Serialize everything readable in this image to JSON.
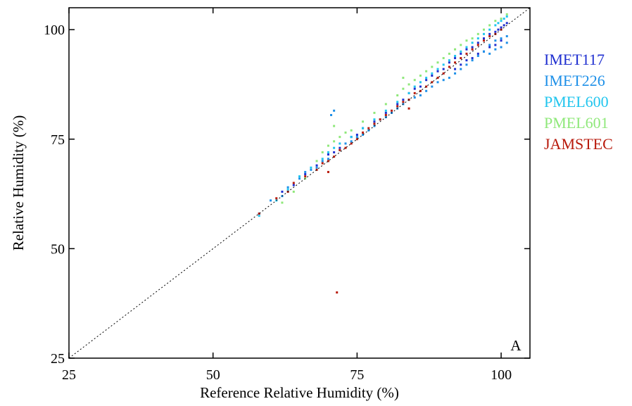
{
  "chart_data": {
    "type": "scatter",
    "title": "",
    "xlabel": "Reference Relative Humidity (%)",
    "ylabel": "Relative Humidity (%)",
    "panel_label": "A",
    "xlim": [
      25,
      105
    ],
    "ylim": [
      25,
      105
    ],
    "x_ticks": [
      25,
      50,
      75,
      100
    ],
    "y_ticks": [
      25,
      50,
      75,
      100
    ],
    "x_tick_labels": [
      "25",
      "50",
      "75",
      "100"
    ],
    "y_tick_labels": [
      "25",
      "50",
      "75",
      "100"
    ],
    "reference_line": "1:1 dotted",
    "grid": false,
    "legend_position": "right",
    "series": [
      {
        "name": "IMET117",
        "color": "#1f2fd0",
        "points": [
          [
            62,
            63
          ],
          [
            64,
            64.5
          ],
          [
            66,
            67
          ],
          [
            68,
            69
          ],
          [
            70,
            71.5
          ],
          [
            71,
            72
          ],
          [
            72,
            73
          ],
          [
            74,
            75.5
          ],
          [
            75,
            76
          ],
          [
            76,
            77.5
          ],
          [
            78,
            79
          ],
          [
            80,
            81
          ],
          [
            82,
            83
          ],
          [
            83,
            84
          ],
          [
            84,
            85.5
          ],
          [
            85,
            86.5
          ],
          [
            86,
            87
          ],
          [
            87,
            88.5
          ],
          [
            88,
            89.5
          ],
          [
            89,
            90.5
          ],
          [
            90,
            91
          ],
          [
            91,
            92.5
          ],
          [
            92,
            93.5
          ],
          [
            93,
            94.5
          ],
          [
            94,
            95.5
          ],
          [
            95,
            96
          ],
          [
            96,
            97
          ],
          [
            97,
            98
          ],
          [
            98,
            99
          ],
          [
            99,
            99.5
          ],
          [
            99.5,
            100
          ],
          [
            100,
            100.5
          ],
          [
            100.5,
            101
          ],
          [
            101,
            101.5
          ],
          [
            100,
            97.5
          ],
          [
            99,
            96.5
          ],
          [
            98,
            96
          ],
          [
            97,
            95
          ],
          [
            96,
            94.5
          ],
          [
            95,
            93.5
          ],
          [
            94,
            93
          ],
          [
            93,
            92
          ],
          [
            92,
            91
          ]
        ]
      },
      {
        "name": "IMET226",
        "color": "#1e90e8",
        "points": [
          [
            58,
            58
          ],
          [
            60,
            61
          ],
          [
            62,
            62
          ],
          [
            63,
            64
          ],
          [
            65,
            66
          ],
          [
            66,
            67.5
          ],
          [
            67,
            68
          ],
          [
            68,
            68.5
          ],
          [
            69,
            70
          ],
          [
            70,
            70.5
          ],
          [
            70.5,
            80.5
          ],
          [
            71,
            81.5
          ],
          [
            72,
            72.5
          ],
          [
            73,
            74
          ],
          [
            74,
            74.5
          ],
          [
            75,
            75.5
          ],
          [
            76,
            76
          ],
          [
            77,
            77
          ],
          [
            78,
            78
          ],
          [
            79,
            79.5
          ],
          [
            80,
            80
          ],
          [
            81,
            81
          ],
          [
            82,
            82
          ],
          [
            83,
            83
          ],
          [
            84,
            84
          ],
          [
            85,
            84.5
          ],
          [
            86,
            85
          ],
          [
            87,
            86
          ],
          [
            88,
            87
          ],
          [
            89,
            88
          ],
          [
            90,
            88.5
          ],
          [
            91,
            89
          ],
          [
            92,
            90
          ],
          [
            93,
            91
          ],
          [
            94,
            92
          ],
          [
            95,
            93
          ],
          [
            96,
            94
          ],
          [
            97,
            95
          ],
          [
            98,
            96.5
          ],
          [
            99,
            97.5
          ],
          [
            100,
            98
          ],
          [
            101,
            98.5
          ],
          [
            101,
            97
          ],
          [
            100,
            96
          ],
          [
            99,
            95.5
          ],
          [
            98,
            94.5
          ]
        ]
      },
      {
        "name": "PMEL600",
        "color": "#20c5ee",
        "points": [
          [
            58,
            57.5
          ],
          [
            61,
            61
          ],
          [
            63,
            63.5
          ],
          [
            65,
            66.5
          ],
          [
            67,
            68.5
          ],
          [
            69,
            70.5
          ],
          [
            70,
            72
          ],
          [
            71,
            73
          ],
          [
            72,
            74
          ],
          [
            74,
            75.5
          ],
          [
            76,
            77.5
          ],
          [
            78,
            79.5
          ],
          [
            80,
            81.5
          ],
          [
            82,
            83.5
          ],
          [
            84,
            85.5
          ],
          [
            85,
            87
          ],
          [
            86,
            88
          ],
          [
            87,
            89
          ],
          [
            88,
            90
          ],
          [
            89,
            91
          ],
          [
            90,
            92
          ],
          [
            91,
            93
          ],
          [
            92,
            94
          ],
          [
            93,
            95
          ],
          [
            94,
            96
          ],
          [
            95,
            97
          ],
          [
            96,
            98
          ],
          [
            97,
            99
          ],
          [
            98,
            100
          ],
          [
            99,
            101
          ],
          [
            99.5,
            101.5
          ],
          [
            100,
            102
          ],
          [
            100.5,
            102.5
          ],
          [
            101,
            103
          ]
        ]
      },
      {
        "name": "PMEL601",
        "color": "#8fe87a",
        "points": [
          [
            62,
            60.5
          ],
          [
            64,
            63
          ],
          [
            66,
            66
          ],
          [
            68,
            70
          ],
          [
            69,
            72
          ],
          [
            70,
            73.5
          ],
          [
            71,
            74.5
          ],
          [
            72,
            75.5
          ],
          [
            73,
            76.5
          ],
          [
            74,
            77
          ],
          [
            76,
            79
          ],
          [
            78,
            81
          ],
          [
            80,
            83
          ],
          [
            82,
            85
          ],
          [
            83,
            86.5
          ],
          [
            84,
            87.5
          ],
          [
            85,
            88.5
          ],
          [
            86,
            89.5
          ],
          [
            87,
            90.5
          ],
          [
            88,
            91.5
          ],
          [
            89,
            92.5
          ],
          [
            90,
            93.5
          ],
          [
            91,
            94.5
          ],
          [
            92,
            95.5
          ],
          [
            93,
            96.5
          ],
          [
            94,
            97.5
          ],
          [
            95,
            98
          ],
          [
            96,
            99
          ],
          [
            97,
            100
          ],
          [
            98,
            101
          ],
          [
            99,
            102
          ],
          [
            100,
            102.5
          ],
          [
            101,
            103.5
          ],
          [
            83,
            89
          ],
          [
            71,
            78
          ]
        ]
      },
      {
        "name": "JAMSTEC",
        "color": "#b81a0c",
        "points": [
          [
            58,
            58
          ],
          [
            61,
            61.5
          ],
          [
            63,
            63
          ],
          [
            64,
            65
          ],
          [
            66,
            66.5
          ],
          [
            68,
            68
          ],
          [
            69,
            69.5
          ],
          [
            70,
            70
          ],
          [
            71,
            71
          ],
          [
            71.5,
            40
          ],
          [
            72,
            72.5
          ],
          [
            73,
            73
          ],
          [
            74,
            74
          ],
          [
            75,
            75
          ],
          [
            76,
            76.5
          ],
          [
            77,
            77.5
          ],
          [
            78,
            78.5
          ],
          [
            79,
            79.5
          ],
          [
            80,
            80.5
          ],
          [
            81,
            81.5
          ],
          [
            82,
            82.5
          ],
          [
            83,
            83.5
          ],
          [
            84,
            84
          ],
          [
            85,
            85.5
          ],
          [
            86,
            86
          ],
          [
            87,
            87
          ],
          [
            88,
            88
          ],
          [
            89,
            89
          ],
          [
            90,
            90
          ],
          [
            91,
            91.5
          ],
          [
            92,
            92.5
          ],
          [
            93,
            93.5
          ],
          [
            94,
            94.5
          ],
          [
            95,
            95.5
          ],
          [
            96,
            96.5
          ],
          [
            97,
            97.5
          ],
          [
            98,
            98.5
          ],
          [
            99,
            99
          ],
          [
            100,
            100
          ],
          [
            70,
            67.5
          ],
          [
            84,
            82
          ]
        ]
      }
    ]
  }
}
